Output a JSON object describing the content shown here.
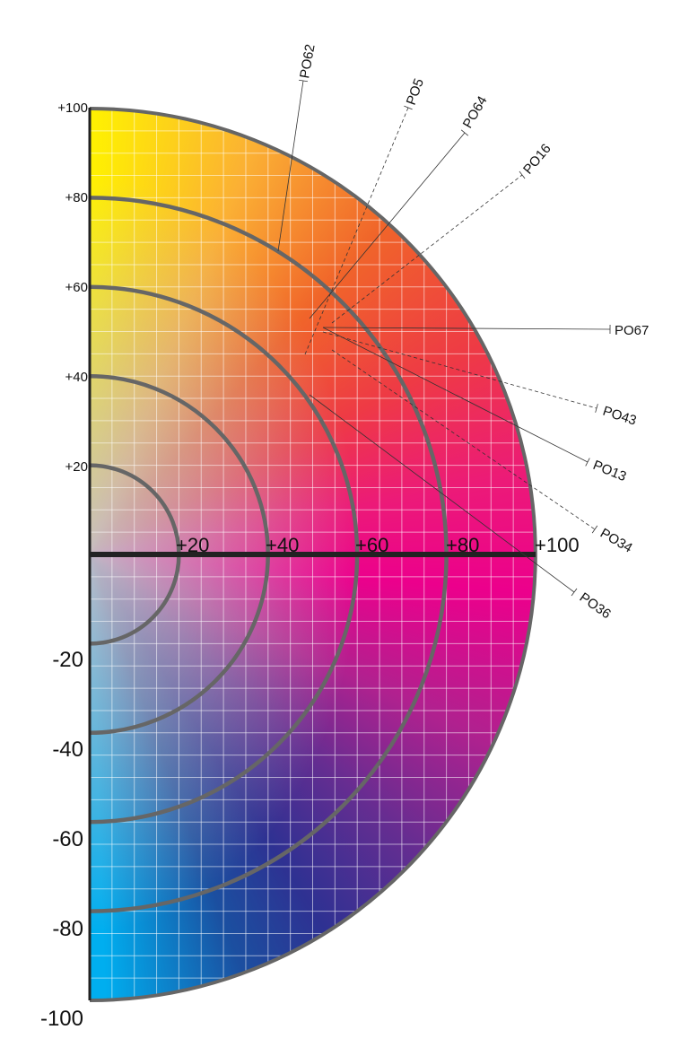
{
  "axis_labels": {
    "y_positive": [
      "+100",
      "+80",
      "+60",
      "+40",
      "+20"
    ],
    "x": [
      "+20",
      "+40",
      "+60",
      "+80",
      "+100"
    ],
    "y_negative": [
      "-20",
      "-40",
      "-60",
      "-80",
      "-100"
    ]
  },
  "pigments": [
    "PO62",
    "PO5",
    "PO64",
    "PO16",
    "PO67",
    "PO43",
    "PO13",
    "PO34",
    "PO36"
  ]
}
